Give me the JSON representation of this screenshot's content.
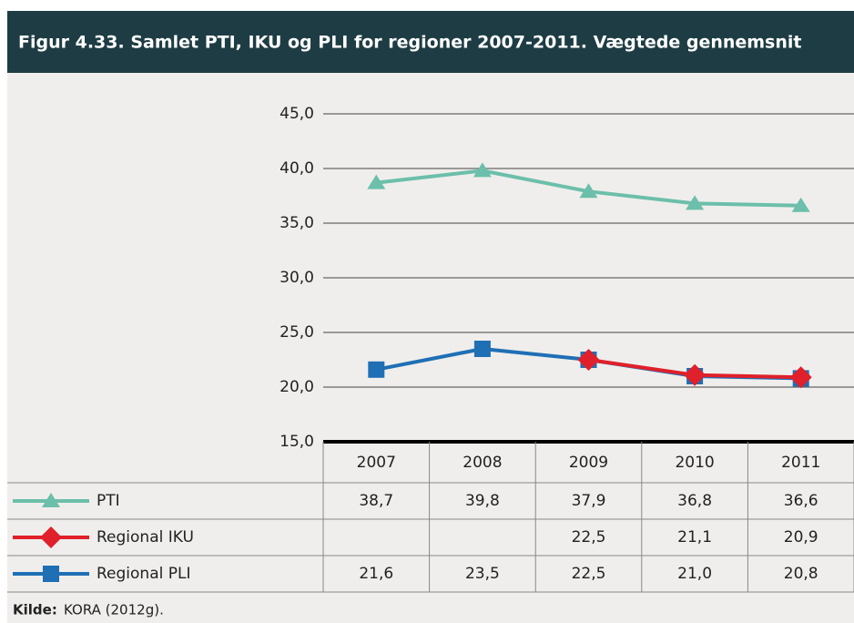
{
  "chart_data": {
    "type": "line",
    "title": "Figur 4.33. Samlet PTI, IKU og PLI for regioner 2007-2011. Vægtede gennemsnit",
    "categories": [
      "2007",
      "2008",
      "2009",
      "2010",
      "2011"
    ],
    "series": [
      {
        "name": "PTI",
        "color": "#6cbfaa",
        "marker": "triangle",
        "values": [
          38.7,
          39.8,
          37.9,
          36.8,
          36.6
        ],
        "value_labels": [
          "38,7",
          "39,8",
          "37,9",
          "36,8",
          "36,6"
        ]
      },
      {
        "name": "Regional IKU",
        "color": "#e0202a",
        "marker": "diamond",
        "values": [
          null,
          null,
          22.5,
          21.1,
          20.9
        ],
        "value_labels": [
          null,
          null,
          "22,5",
          "21,1",
          "20,9"
        ]
      },
      {
        "name": "Regional PLI",
        "color": "#1f6fb5",
        "marker": "square",
        "values": [
          21.6,
          23.5,
          22.5,
          21.0,
          20.8
        ],
        "value_labels": [
          "21,6",
          "23,5",
          "22,5",
          "21,0",
          "20,8"
        ]
      }
    ],
    "ylim": [
      15,
      45
    ],
    "yticks": [
      {
        "value": 15,
        "label": "15,0"
      },
      {
        "value": 20,
        "label": "20,0"
      },
      {
        "value": 25,
        "label": "25,0"
      },
      {
        "value": 30,
        "label": "30,0"
      },
      {
        "value": 35,
        "label": "35,0"
      },
      {
        "value": 40,
        "label": "40,0"
      },
      {
        "value": 45,
        "label": "45,0"
      }
    ],
    "grid": true,
    "source_label": "Kilde:",
    "source": "KORA (2012g)."
  }
}
